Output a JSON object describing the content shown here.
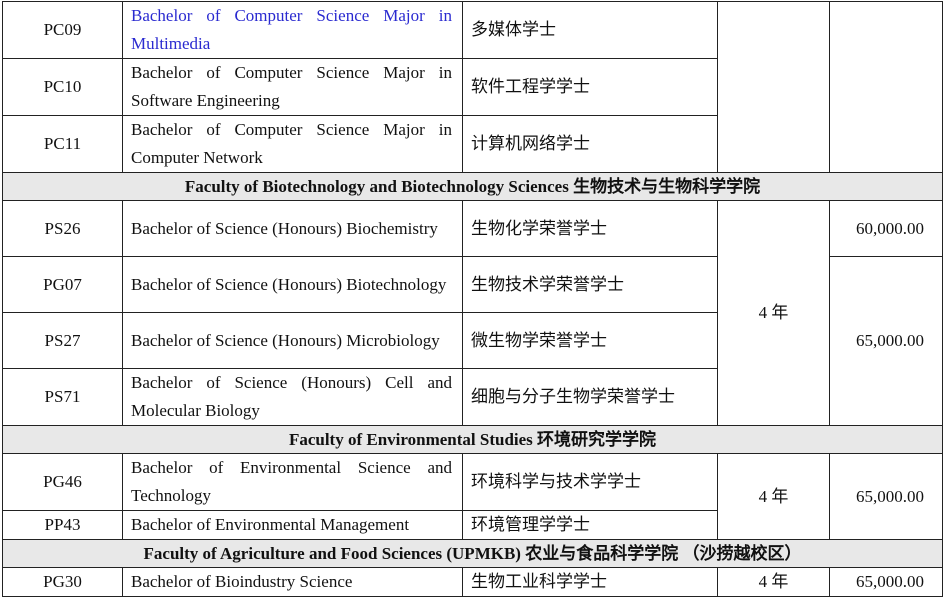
{
  "rows_pc": [
    {
      "code": "PC09",
      "name": "Bachelor of Computer Science Major in Multimedia",
      "cn": "多媒体学士"
    },
    {
      "code": "PC10",
      "name": "Bachelor of Computer Science Major in Software Engineering",
      "cn": "软件工程学学士"
    },
    {
      "code": "PC11",
      "name": "Bachelor of Computer Science Major in Computer Network",
      "cn": "计算机网络学士"
    }
  ],
  "faculty_bio": "Faculty of Biotechnology and Biotechnology Sciences  生物技术与生物科学学院",
  "rows_bio": [
    {
      "code": "PS26",
      "name": "Bachelor of Science (Honours) Biochemistry",
      "cn": "生物化学荣誉学士"
    },
    {
      "code": "PG07",
      "name": "Bachelor of Science (Honours) Biotechnology",
      "cn": "生物技术学荣誉学士"
    },
    {
      "code": "PS27",
      "name": "Bachelor of Science (Honours) Microbiology",
      "cn": "微生物学荣誉学士"
    },
    {
      "code": "PS71",
      "name": "Bachelor of Science (Honours) Cell and Molecular Biology",
      "cn": "细胞与分子生物学荣誉学士"
    }
  ],
  "bio_duration": "4 年",
  "bio_fee_1": "60,000.00",
  "bio_fee_2": "65,000.00",
  "faculty_env": "Faculty of Environmental Studies  环境研究学学院",
  "rows_env": [
    {
      "code": "PG46",
      "name": "Bachelor of Environmental Science and Technology",
      "cn": "环境科学与技术学学士"
    },
    {
      "code": "PP43",
      "name": "Bachelor of Environmental Management",
      "cn": "环境管理学学士"
    }
  ],
  "env_duration": "4 年",
  "env_fee": "65,000.00",
  "faculty_agri": "Faculty of Agriculture and Food Sciences (UPMKB)  农业与食品科学学院  （沙捞越校区）",
  "rows_agri": [
    {
      "code": "PG30",
      "name": "Bachelor of Bioindustry Science",
      "cn": "生物工业科学学士",
      "duration": "4 年",
      "fee": "65,000.00"
    }
  ]
}
